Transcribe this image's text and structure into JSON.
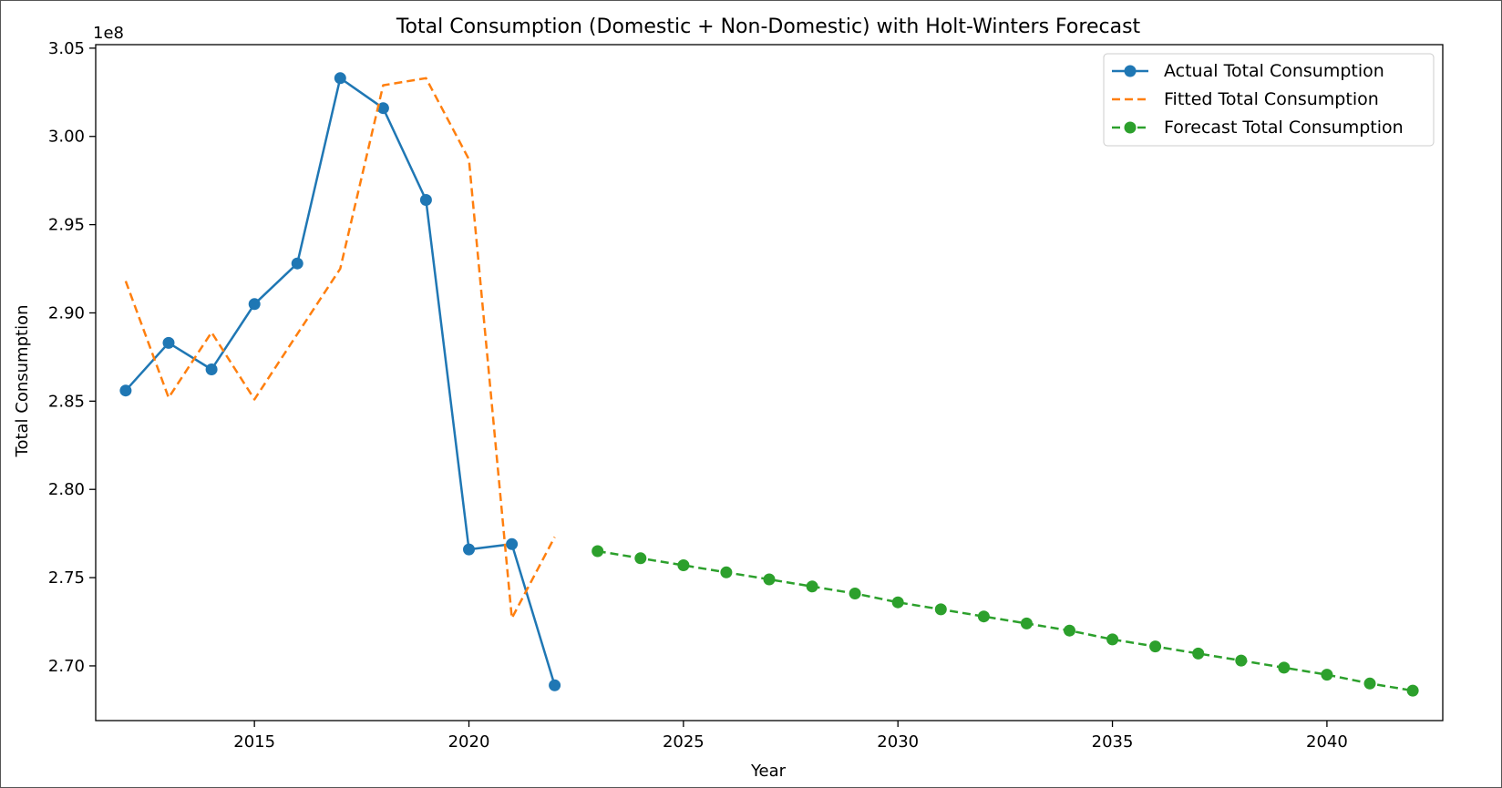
{
  "chart_data": {
    "type": "line",
    "title": "Total Consumption (Domestic + Non-Domestic) with Holt-Winters Forecast",
    "xlabel": "Year",
    "ylabel": "Total Consumption",
    "y_offset_label": "1e8",
    "xlim": [
      2011.3,
      2042.7
    ],
    "ylim": [
      2.669,
      3.052
    ],
    "xticks": [
      2015,
      2020,
      2025,
      2030,
      2035,
      2040
    ],
    "yticks": [
      2.7,
      2.75,
      2.8,
      2.85,
      2.9,
      2.95,
      3.0,
      3.05
    ],
    "ytick_labels": [
      "2.70",
      "2.75",
      "2.80",
      "2.85",
      "2.90",
      "2.95",
      "3.00",
      "3.05"
    ],
    "grid": false,
    "legend_position": "top-right",
    "series": [
      {
        "name": "Actual Total Consumption",
        "color": "#1f77b4",
        "style": "solid",
        "marker": "circle",
        "x": [
          2012,
          2013,
          2014,
          2015,
          2016,
          2017,
          2018,
          2019,
          2020,
          2021,
          2022
        ],
        "y": [
          2.856,
          2.883,
          2.868,
          2.905,
          2.928,
          3.033,
          3.016,
          2.964,
          2.766,
          2.769,
          2.689
        ]
      },
      {
        "name": "Fitted Total Consumption",
        "color": "#ff7f0e",
        "style": "dashed",
        "marker": "none",
        "x": [
          2012,
          2013,
          2014,
          2015,
          2016,
          2017,
          2018,
          2019,
          2020,
          2021,
          2022
        ],
        "y": [
          2.918,
          2.852,
          2.889,
          2.851,
          2.888,
          2.925,
          3.029,
          3.033,
          2.987,
          2.727,
          2.773
        ]
      },
      {
        "name": "Forecast Total Consumption",
        "color": "#2ca02c",
        "style": "dashed",
        "marker": "circle",
        "x": [
          2023,
          2024,
          2025,
          2026,
          2027,
          2028,
          2029,
          2030,
          2031,
          2032,
          2033,
          2034,
          2035,
          2036,
          2037,
          2038,
          2039,
          2040,
          2041,
          2042
        ],
        "y": [
          2.765,
          2.761,
          2.757,
          2.753,
          2.749,
          2.745,
          2.741,
          2.736,
          2.732,
          2.728,
          2.724,
          2.72,
          2.715,
          2.711,
          2.707,
          2.703,
          2.699,
          2.695,
          2.69,
          2.686
        ]
      }
    ]
  }
}
